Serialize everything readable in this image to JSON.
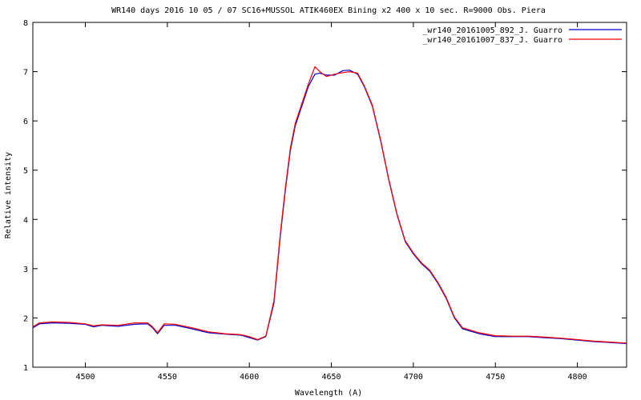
{
  "chart_data": {
    "type": "line",
    "title": "WR140  days  2016 10 05 / 07 SC16+MUSSOL   ATIK460EX Bining x2  400 x 10 sec.  R=9000 Obs. Piera",
    "xlabel": "Wavelength (A)",
    "ylabel": "Relative intensity",
    "xlim": [
      4468,
      4830
    ],
    "ylim": [
      1,
      8
    ],
    "xticks": [
      4500,
      4550,
      4600,
      4650,
      4700,
      4750,
      4800
    ],
    "yticks": [
      1,
      2,
      3,
      4,
      5,
      6,
      7,
      8
    ],
    "grid": false,
    "legend_position": "top-right",
    "series": [
      {
        "name": "_wr140_20161005_892_J. Guarro",
        "color": "#0000cc",
        "x": [
          4468,
          4472,
          4480,
          4490,
          4500,
          4505,
          4510,
          4520,
          4530,
          4538,
          4541,
          4544,
          4548,
          4555,
          4565,
          4575,
          4585,
          4595,
          4600,
          4605,
          4610,
          4615,
          4619,
          4622,
          4625,
          4628,
          4632,
          4636,
          4640,
          4643,
          4647,
          4652,
          4657,
          4661,
          4666,
          4670,
          4675,
          4680,
          4685,
          4690,
          4695,
          4700,
          4705,
          4710,
          4715,
          4720,
          4725,
          4730,
          4740,
          4750,
          4760,
          4770,
          4780,
          4790,
          4800,
          4810,
          4820,
          4830
        ],
        "y": [
          1.8,
          1.88,
          1.9,
          1.89,
          1.87,
          1.82,
          1.85,
          1.83,
          1.87,
          1.88,
          1.8,
          1.68,
          1.85,
          1.85,
          1.78,
          1.7,
          1.67,
          1.65,
          1.6,
          1.55,
          1.62,
          2.3,
          3.7,
          4.6,
          5.4,
          5.9,
          6.3,
          6.7,
          6.95,
          6.97,
          6.93,
          6.93,
          7.02,
          7.03,
          6.95,
          6.7,
          6.3,
          5.6,
          4.8,
          4.1,
          3.55,
          3.3,
          3.1,
          2.95,
          2.7,
          2.4,
          2.0,
          1.78,
          1.68,
          1.62,
          1.62,
          1.62,
          1.6,
          1.58,
          1.55,
          1.52,
          1.5,
          1.48
        ]
      },
      {
        "name": "_wr140_20161007_837_J. Guarro",
        "color": "#ff0000",
        "x": [
          4468,
          4472,
          4480,
          4490,
          4500,
          4505,
          4510,
          4520,
          4530,
          4538,
          4541,
          4544,
          4548,
          4555,
          4565,
          4575,
          4585,
          4595,
          4600,
          4605,
          4610,
          4615,
          4619,
          4622,
          4625,
          4628,
          4632,
          4636,
          4640,
          4643,
          4647,
          4652,
          4657,
          4661,
          4666,
          4670,
          4675,
          4680,
          4685,
          4690,
          4695,
          4700,
          4705,
          4710,
          4715,
          4720,
          4725,
          4730,
          4740,
          4750,
          4760,
          4770,
          4780,
          4790,
          4800,
          4810,
          4820,
          4830
        ],
        "y": [
          1.82,
          1.9,
          1.92,
          1.91,
          1.88,
          1.84,
          1.86,
          1.85,
          1.9,
          1.9,
          1.82,
          1.7,
          1.88,
          1.87,
          1.8,
          1.72,
          1.68,
          1.66,
          1.62,
          1.56,
          1.63,
          2.35,
          3.75,
          4.65,
          5.45,
          5.95,
          6.35,
          6.75,
          7.1,
          7.0,
          6.9,
          6.95,
          6.98,
          7.0,
          6.97,
          6.72,
          6.32,
          5.62,
          4.82,
          4.12,
          3.57,
          3.32,
          3.12,
          2.97,
          2.72,
          2.42,
          2.02,
          1.8,
          1.7,
          1.64,
          1.63,
          1.63,
          1.61,
          1.59,
          1.56,
          1.53,
          1.51,
          1.49
        ]
      }
    ]
  }
}
